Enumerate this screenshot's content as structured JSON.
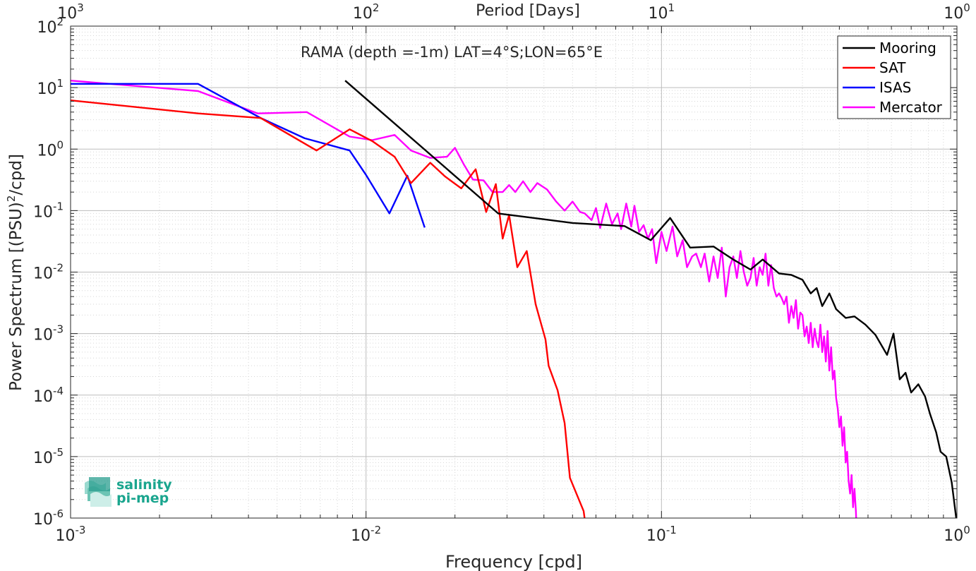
{
  "chart_data": {
    "type": "line",
    "title": "RAMA (depth =-1m) LAT=4°S;LON=65°E",
    "xlabel": "Frequency [cpd]",
    "ylabel_main": "Power Spectrum [(PSU)",
    "ylabel_sup": "2",
    "ylabel_tail": "/cpd]",
    "top_xlabel": "Period [Days]",
    "xscale": "log",
    "yscale": "log",
    "xlim": [
      0.001,
      1
    ],
    "ylim": [
      1e-06,
      100
    ],
    "grid": true,
    "legend_position": "top-right",
    "x_ticks": [
      {
        "base": "10",
        "exp": "-3",
        "value": 0.001
      },
      {
        "base": "10",
        "exp": "-2",
        "value": 0.01
      },
      {
        "base": "10",
        "exp": "-1",
        "value": 0.1
      },
      {
        "base": "10",
        "exp": "0",
        "value": 1
      }
    ],
    "y_ticks": [
      {
        "base": "10",
        "exp": "-6",
        "value": 1e-06
      },
      {
        "base": "10",
        "exp": "-5",
        "value": 1e-05
      },
      {
        "base": "10",
        "exp": "-4",
        "value": 0.0001
      },
      {
        "base": "10",
        "exp": "-3",
        "value": 0.001
      },
      {
        "base": "10",
        "exp": "-2",
        "value": 0.01
      },
      {
        "base": "10",
        "exp": "-1",
        "value": 0.1
      },
      {
        "base": "10",
        "exp": "0",
        "value": 1
      },
      {
        "base": "10",
        "exp": "1",
        "value": 10
      },
      {
        "base": "10",
        "exp": "2",
        "value": 100
      }
    ],
    "top_ticks": [
      {
        "base": "10",
        "exp": "3",
        "value": 0.001
      },
      {
        "base": "10",
        "exp": "2",
        "value": 0.01
      },
      {
        "base": "10",
        "exp": "1",
        "value": 0.1
      },
      {
        "base": "10",
        "exp": "0",
        "value": 1
      }
    ],
    "series": [
      {
        "name": "Mooring",
        "color": "#000000",
        "points": [
          [
            0.0085,
            13
          ],
          [
            0.028,
            0.09
          ],
          [
            0.05,
            0.063
          ],
          [
            0.075,
            0.056
          ],
          [
            0.092,
            0.033
          ],
          [
            0.107,
            0.076
          ],
          [
            0.125,
            0.025
          ],
          [
            0.15,
            0.026
          ],
          [
            0.175,
            0.016
          ],
          [
            0.2,
            0.011
          ],
          [
            0.22,
            0.016
          ],
          [
            0.25,
            0.0095
          ],
          [
            0.275,
            0.009
          ],
          [
            0.3,
            0.0075
          ],
          [
            0.32,
            0.0045
          ],
          [
            0.335,
            0.0055
          ],
          [
            0.35,
            0.0028
          ],
          [
            0.37,
            0.0045
          ],
          [
            0.39,
            0.0025
          ],
          [
            0.42,
            0.0018
          ],
          [
            0.45,
            0.0019
          ],
          [
            0.49,
            0.0014
          ],
          [
            0.53,
            0.00095
          ],
          [
            0.58,
            0.00045
          ],
          [
            0.61,
            0.001
          ],
          [
            0.64,
            0.00018
          ],
          [
            0.67,
            0.00023
          ],
          [
            0.7,
            0.00011
          ],
          [
            0.74,
            0.00015
          ],
          [
            0.78,
            9.5e-05
          ],
          [
            0.81,
            5e-05
          ],
          [
            0.85,
            2.5e-05
          ],
          [
            0.88,
            1.2e-05
          ],
          [
            0.92,
            1e-05
          ],
          [
            0.96,
            3.8e-06
          ],
          [
            1.0,
            8e-07
          ]
        ]
      },
      {
        "name": "SAT",
        "color": "#ff0000",
        "points": [
          [
            0.001,
            6.2
          ],
          [
            0.0027,
            3.8
          ],
          [
            0.0044,
            3.2
          ],
          [
            0.0068,
            0.95
          ],
          [
            0.0088,
            2.1
          ],
          [
            0.0105,
            1.35
          ],
          [
            0.0125,
            0.75
          ],
          [
            0.0142,
            0.28
          ],
          [
            0.0165,
            0.6
          ],
          [
            0.0185,
            0.36
          ],
          [
            0.021,
            0.23
          ],
          [
            0.0235,
            0.47
          ],
          [
            0.0255,
            0.095
          ],
          [
            0.0275,
            0.27
          ],
          [
            0.029,
            0.035
          ],
          [
            0.0305,
            0.085
          ],
          [
            0.0325,
            0.012
          ],
          [
            0.035,
            0.022
          ],
          [
            0.0375,
            0.003
          ],
          [
            0.0405,
            0.0008
          ],
          [
            0.0415,
            0.0003
          ],
          [
            0.0445,
            0.00012
          ],
          [
            0.047,
            3.5e-05
          ],
          [
            0.049,
            4.5e-06
          ],
          [
            0.0545,
            1.3e-06
          ],
          [
            0.0575,
            2e-07
          ]
        ]
      },
      {
        "name": "ISAS",
        "color": "#0000ff",
        "points": [
          [
            0.001,
            11.5
          ],
          [
            0.0027,
            11.5
          ],
          [
            0.0044,
            3.2
          ],
          [
            0.0062,
            1.5
          ],
          [
            0.0088,
            0.95
          ],
          [
            0.01,
            0.38
          ],
          [
            0.012,
            0.09
          ],
          [
            0.0138,
            0.37
          ],
          [
            0.0158,
            0.053
          ]
        ]
      },
      {
        "name": "Mercator",
        "color": "#ff00ff",
        "points": [
          [
            0.001,
            13
          ],
          [
            0.0027,
            8.8
          ],
          [
            0.0043,
            3.8
          ],
          [
            0.0063,
            4
          ],
          [
            0.0088,
            1.6
          ],
          [
            0.0105,
            1.4
          ],
          [
            0.0125,
            1.7
          ],
          [
            0.0142,
            0.95
          ],
          [
            0.0165,
            0.72
          ],
          [
            0.0188,
            0.75
          ],
          [
            0.02,
            1.05
          ],
          [
            0.0215,
            0.55
          ],
          [
            0.023,
            0.32
          ],
          [
            0.025,
            0.31
          ],
          [
            0.0268,
            0.2
          ],
          [
            0.029,
            0.2
          ],
          [
            0.0305,
            0.26
          ],
          [
            0.032,
            0.2
          ],
          [
            0.034,
            0.3
          ],
          [
            0.036,
            0.2
          ],
          [
            0.038,
            0.28
          ],
          [
            0.041,
            0.22
          ],
          [
            0.044,
            0.14
          ],
          [
            0.047,
            0.1
          ],
          [
            0.05,
            0.14
          ],
          [
            0.053,
            0.095
          ],
          [
            0.055,
            0.09
          ],
          [
            0.058,
            0.07
          ],
          [
            0.06,
            0.11
          ],
          [
            0.062,
            0.052
          ],
          [
            0.065,
            0.13
          ],
          [
            0.068,
            0.06
          ],
          [
            0.071,
            0.09
          ],
          [
            0.073,
            0.05
          ],
          [
            0.076,
            0.13
          ],
          [
            0.079,
            0.055
          ],
          [
            0.081,
            0.12
          ],
          [
            0.084,
            0.045
          ],
          [
            0.087,
            0.058
          ],
          [
            0.09,
            0.035
          ],
          [
            0.093,
            0.05
          ],
          [
            0.096,
            0.014
          ],
          [
            0.1,
            0.045
          ],
          [
            0.104,
            0.022
          ],
          [
            0.109,
            0.055
          ],
          [
            0.113,
            0.018
          ],
          [
            0.118,
            0.033
          ],
          [
            0.122,
            0.012
          ],
          [
            0.127,
            0.018
          ],
          [
            0.131,
            0.02
          ],
          [
            0.136,
            0.012
          ],
          [
            0.14,
            0.02
          ],
          [
            0.145,
            0.007
          ],
          [
            0.15,
            0.018
          ],
          [
            0.155,
            0.008
          ],
          [
            0.16,
            0.025
          ],
          [
            0.165,
            0.004
          ],
          [
            0.17,
            0.012
          ],
          [
            0.175,
            0.018
          ],
          [
            0.18,
            0.008
          ],
          [
            0.185,
            0.022
          ],
          [
            0.19,
            0.01
          ],
          [
            0.195,
            0.006
          ],
          [
            0.2,
            0.008
          ],
          [
            0.205,
            0.017
          ],
          [
            0.21,
            0.006
          ],
          [
            0.215,
            0.012
          ],
          [
            0.22,
            0.009
          ],
          [
            0.225,
            0.02
          ],
          [
            0.23,
            0.006
          ],
          [
            0.235,
            0.013
          ],
          [
            0.24,
            0.0055
          ],
          [
            0.245,
            0.004
          ],
          [
            0.25,
            0.0045
          ],
          [
            0.255,
            0.0038
          ],
          [
            0.26,
            0.003
          ],
          [
            0.265,
            0.004
          ],
          [
            0.27,
            0.0015
          ],
          [
            0.275,
            0.0028
          ],
          [
            0.28,
            0.0018
          ],
          [
            0.285,
            0.0035
          ],
          [
            0.29,
            0.0012
          ],
          [
            0.295,
            0.0022
          ],
          [
            0.3,
            0.002
          ],
          [
            0.305,
            0.0009
          ],
          [
            0.31,
            0.0013
          ],
          [
            0.315,
            0.0007
          ],
          [
            0.32,
            0.0015
          ],
          [
            0.325,
            0.0006
          ],
          [
            0.33,
            0.0012
          ],
          [
            0.335,
            0.00075
          ],
          [
            0.34,
            0.0006
          ],
          [
            0.345,
            0.0014
          ],
          [
            0.35,
            0.0005
          ],
          [
            0.355,
            0.0009
          ],
          [
            0.36,
            0.00035
          ],
          [
            0.365,
            0.0011
          ],
          [
            0.37,
            0.00025
          ],
          [
            0.375,
            0.0006
          ],
          [
            0.38,
            0.00018
          ],
          [
            0.385,
            0.00025
          ],
          [
            0.39,
            9e-05
          ],
          [
            0.395,
            6e-05
          ],
          [
            0.4,
            3e-05
          ],
          [
            0.405,
            4.5e-05
          ],
          [
            0.41,
            1.5e-05
          ],
          [
            0.415,
            3e-05
          ],
          [
            0.42,
            8e-06
          ],
          [
            0.425,
            1.2e-05
          ],
          [
            0.43,
            4e-06
          ],
          [
            0.435,
            2.5e-06
          ],
          [
            0.44,
            5e-06
          ],
          [
            0.445,
            1.5e-06
          ],
          [
            0.45,
            3e-06
          ],
          [
            0.455,
            1.3e-06
          ],
          [
            0.46,
            3.5e-07
          ]
        ]
      }
    ]
  },
  "logo": {
    "line1": "salinity",
    "line2": "pi-mep"
  }
}
